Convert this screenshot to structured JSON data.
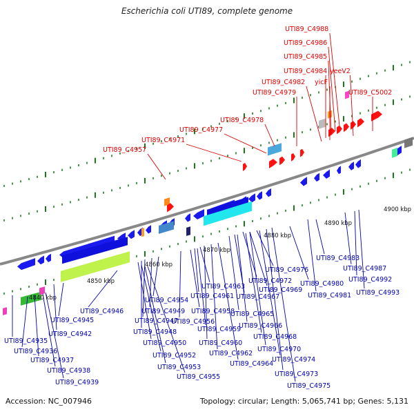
{
  "title": "Escherichia coli UTI89, complete genome",
  "accession": "Accession: NC_007946",
  "summary": "Topology: circular; Length: 5,065,741 bp; Genes: 5,131",
  "colors": {
    "forward_label": "#dd0000",
    "reverse_label": "#0000aa",
    "backbone": "#888888",
    "tick": "#1a7a1a"
  },
  "scale_labels": [
    "4840 kbp",
    "4850 kbp",
    "4860 kbp",
    "4870 kbp",
    "4880 kbp",
    "4890 kbp",
    "4900 kbp"
  ],
  "forward_gene_labels": [
    "UTI89_C4988",
    "UTI89_C4986",
    "UTI89_C4985",
    "UTI89_C4984",
    "yeeV2",
    "UTI89_C4982",
    "yicF",
    "UTI89_C4979",
    "UTI89_C5002",
    "UTI89_C4978",
    "UTI89_C4977",
    "UTI89_C4971",
    "UTI89_C4957"
  ],
  "reverse_gene_labels": [
    "UTI89_C4946",
    "UTI89_C4945",
    "UTI89_C4942",
    "UTI89_C4935",
    "UTI89_C4936",
    "UTI89_C4937",
    "UTI89_C4938",
    "UTI89_C4939",
    "UTI89_C4954",
    "UTI89_C4949",
    "UTI89_C4947",
    "UTI89_C4948",
    "UTI89_C4950",
    "UTI89_C4952",
    "UTI89_C4953",
    "UTI89_C4955",
    "UTI89_C4963",
    "UTI89_C4961",
    "UTI89_C4958",
    "UTI89_C4956",
    "UTI89_C4959",
    "UTI89_C4960",
    "UTI89_C4962",
    "UTI89_C4964",
    "UTI89_C4972",
    "UTI89_C4967",
    "UTI89_C4969",
    "UTI89_C4965",
    "UTI89_C4966",
    "UTI89_C4968",
    "UTI89_C4970",
    "UTI89_C4974",
    "UTI89_C4973",
    "UTI89_C4975",
    "UTI89_C4976",
    "UTI89_C4980",
    "UTI89_C4981",
    "UTI89_C4983",
    "UTI89_C4987",
    "UTI89_C4992",
    "UTI89_C4993"
  ]
}
